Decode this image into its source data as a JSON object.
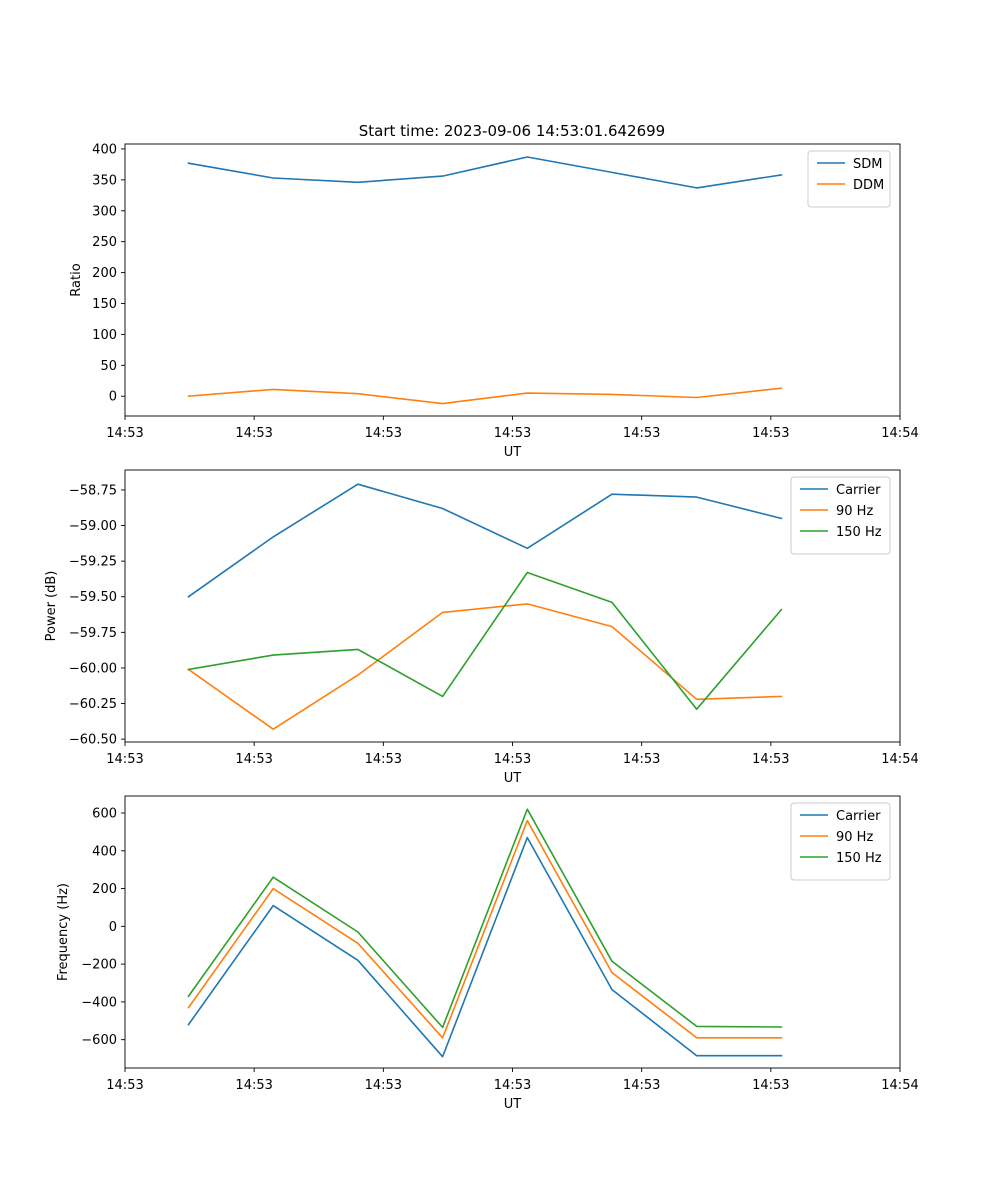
{
  "figure_title": "Start time: 2023-09-06 14:53:01.642699",
  "colors": {
    "blue": "#1f77b4",
    "orange": "#ff7f0e",
    "green": "#2ca02c",
    "axis": "#000000",
    "background": "#ffffff"
  },
  "chart_data": [
    {
      "type": "line",
      "title": "Start time: 2023-09-06 14:53:01.642699",
      "xlabel": "UT",
      "ylabel": "Ratio",
      "x_index": [
        0,
        1,
        2,
        3,
        4,
        5,
        6,
        7
      ],
      "xlim": [
        -0.75,
        8.4
      ],
      "x_ticks": [
        {
          "pos": -0.75,
          "label": "14:53"
        },
        {
          "pos": 0.775,
          "label": "14:53"
        },
        {
          "pos": 2.3,
          "label": "14:53"
        },
        {
          "pos": 3.825,
          "label": "14:53"
        },
        {
          "pos": 5.35,
          "label": "14:53"
        },
        {
          "pos": 6.875,
          "label": "14:53"
        },
        {
          "pos": 8.4,
          "label": "14:54"
        }
      ],
      "ylim": [
        -32,
        408
      ],
      "y_ticks": [
        0,
        50,
        100,
        150,
        200,
        250,
        300,
        350,
        400
      ],
      "y_tick_labels": [
        "0",
        "50",
        "100",
        "150",
        "200",
        "250",
        "300",
        "350",
        "400"
      ],
      "legend_position": "top-right",
      "series": [
        {
          "name": "SDM",
          "color": "#1f77b4",
          "values": [
            377,
            353,
            346,
            356,
            387,
            362,
            337,
            358
          ]
        },
        {
          "name": "DDM",
          "color": "#ff7f0e",
          "values": [
            0,
            11,
            4,
            -12,
            5,
            3,
            -2,
            13
          ]
        }
      ]
    },
    {
      "type": "line",
      "xlabel": "UT",
      "ylabel": "Power (dB)",
      "x_index": [
        0,
        1,
        2,
        3,
        4,
        5,
        6,
        7
      ],
      "xlim": [
        -0.75,
        8.4
      ],
      "x_ticks": [
        {
          "pos": -0.75,
          "label": "14:53"
        },
        {
          "pos": 0.775,
          "label": "14:53"
        },
        {
          "pos": 2.3,
          "label": "14:53"
        },
        {
          "pos": 3.825,
          "label": "14:53"
        },
        {
          "pos": 5.35,
          "label": "14:53"
        },
        {
          "pos": 6.875,
          "label": "14:53"
        },
        {
          "pos": 8.4,
          "label": "14:54"
        }
      ],
      "ylim": [
        -60.52,
        -58.61
      ],
      "y_ticks": [
        -60.5,
        -60.25,
        -60.0,
        -59.75,
        -59.5,
        -59.25,
        -59.0,
        -58.75
      ],
      "y_tick_labels": [
        "−60.50",
        "−60.25",
        "−60.00",
        "−59.75",
        "−59.50",
        "−59.25",
        "−59.00",
        "−58.75"
      ],
      "legend_position": "top-right",
      "series": [
        {
          "name": "Carrier",
          "color": "#1f77b4",
          "values": [
            -59.5,
            -59.08,
            -58.71,
            -58.88,
            -59.16,
            -58.78,
            -58.8,
            -58.95
          ]
        },
        {
          "name": "90 Hz",
          "color": "#ff7f0e",
          "values": [
            -60.01,
            -60.43,
            -60.05,
            -59.61,
            -59.55,
            -59.71,
            -60.22,
            -60.2
          ]
        },
        {
          "name": "150 Hz",
          "color": "#2ca02c",
          "values": [
            -60.01,
            -59.91,
            -59.87,
            -60.2,
            -59.33,
            -59.54,
            -60.29,
            -59.59
          ]
        }
      ]
    },
    {
      "type": "line",
      "xlabel": "UT",
      "ylabel": "Frequency (Hz)",
      "x_index": [
        0,
        1,
        2,
        3,
        4,
        5,
        6,
        7
      ],
      "xlim": [
        -0.75,
        8.4
      ],
      "x_ticks": [
        {
          "pos": -0.75,
          "label": "14:53"
        },
        {
          "pos": 0.775,
          "label": "14:53"
        },
        {
          "pos": 2.3,
          "label": "14:53"
        },
        {
          "pos": 3.825,
          "label": "14:53"
        },
        {
          "pos": 5.35,
          "label": "14:53"
        },
        {
          "pos": 6.875,
          "label": "14:53"
        },
        {
          "pos": 8.4,
          "label": "14:54"
        }
      ],
      "ylim": [
        -750,
        690
      ],
      "y_ticks": [
        -600,
        -400,
        -200,
        0,
        200,
        400,
        600
      ],
      "y_tick_labels": [
        "−600",
        "−400",
        "−200",
        "0",
        "200",
        "400",
        "600"
      ],
      "legend_position": "top-right",
      "series": [
        {
          "name": "Carrier",
          "color": "#1f77b4",
          "values": [
            -520,
            110,
            -180,
            -690,
            470,
            -335,
            -685,
            -685
          ]
        },
        {
          "name": "90 Hz",
          "color": "#ff7f0e",
          "values": [
            -430,
            200,
            -90,
            -590,
            560,
            -245,
            -590,
            -590
          ]
        },
        {
          "name": "150 Hz",
          "color": "#2ca02c",
          "values": [
            -370,
            260,
            -30,
            -535,
            620,
            -185,
            -530,
            -533
          ]
        }
      ]
    }
  ]
}
